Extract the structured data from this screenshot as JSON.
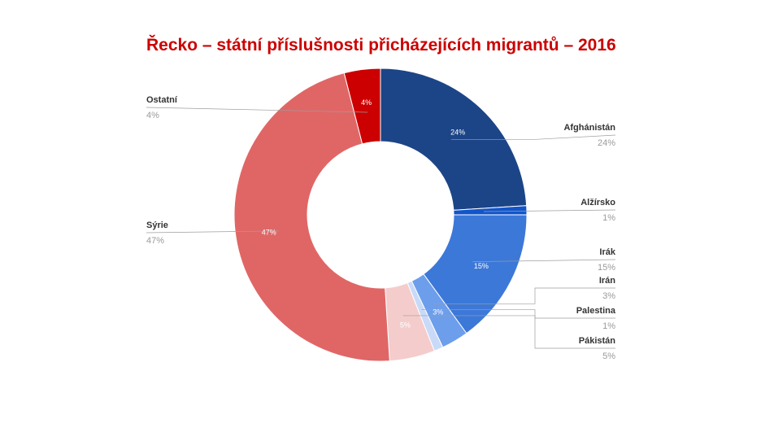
{
  "chart_data": {
    "type": "pie",
    "title": "Řecko – státní příslušnosti přicházejících migrantů – 2016",
    "donut": true,
    "legend": "callout labels",
    "slices": [
      {
        "name": "Afghánistán",
        "value": 24,
        "label": "24%",
        "color": "#1c4587"
      },
      {
        "name": "Alžírsko",
        "value": 1,
        "label": "1%",
        "color": "#1155cc"
      },
      {
        "name": "Irák",
        "value": 15,
        "label": "15%",
        "color": "#3c78d8"
      },
      {
        "name": "Irán",
        "value": 3,
        "label": "3%",
        "color": "#6d9eeb"
      },
      {
        "name": "Palestina",
        "value": 1,
        "label": "1%",
        "color": "#c9daf8"
      },
      {
        "name": "Pákistán",
        "value": 5,
        "label": "5%",
        "color": "#f4cccc"
      },
      {
        "name": "Sýrie",
        "value": 47,
        "label": "47%",
        "color": "#e06666"
      },
      {
        "name": "Ostatní",
        "value": 4,
        "label": "4%",
        "color": "#cc0000"
      }
    ]
  }
}
